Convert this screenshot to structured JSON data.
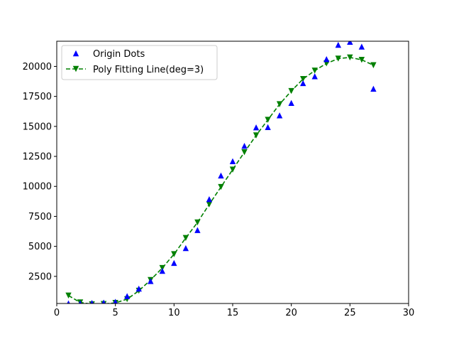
{
  "chart_data": {
    "type": "scatter",
    "title": "",
    "xlabel": "",
    "ylabel": "",
    "xlim": [
      0,
      30
    ],
    "ylim": [
      240,
      22100
    ],
    "xticks": [
      0,
      5,
      10,
      15,
      20,
      25,
      30
    ],
    "yticks": [
      2500,
      5000,
      7500,
      10000,
      12500,
      15000,
      17500,
      20000
    ],
    "grid": false,
    "legend": "top-left",
    "x": [
      1,
      2,
      3,
      4,
      5,
      6,
      7,
      8,
      9,
      10,
      11,
      12,
      13,
      14,
      15,
      16,
      17,
      18,
      19,
      20,
      21,
      22,
      23,
      24,
      25,
      26,
      27
    ],
    "series": [
      {
        "name": "Origin Dots",
        "style": "triangle-up markers",
        "color": "#0000ff",
        "values": [
          250,
          260,
          290,
          320,
          380,
          860,
          1480,
          2110,
          2960,
          3620,
          4860,
          6360,
          8940,
          10910,
          12100,
          13380,
          14920,
          14940,
          15920,
          16960,
          18610,
          19180,
          20610,
          21800,
          22050,
          21650,
          18140
        ]
      },
      {
        "name": "Poly Fitting Line(deg=3)",
        "style": "dashed line, triangle-down markers",
        "color": "#008000",
        "values": [
          900,
          330,
          180,
          200,
          290,
          600,
          1300,
          2200,
          3200,
          4350,
          5700,
          7000,
          8500,
          9950,
          11400,
          12850,
          14250,
          15550,
          16850,
          17950,
          18950,
          19650,
          20250,
          20650,
          20750,
          20550,
          20100
        ]
      }
    ]
  }
}
